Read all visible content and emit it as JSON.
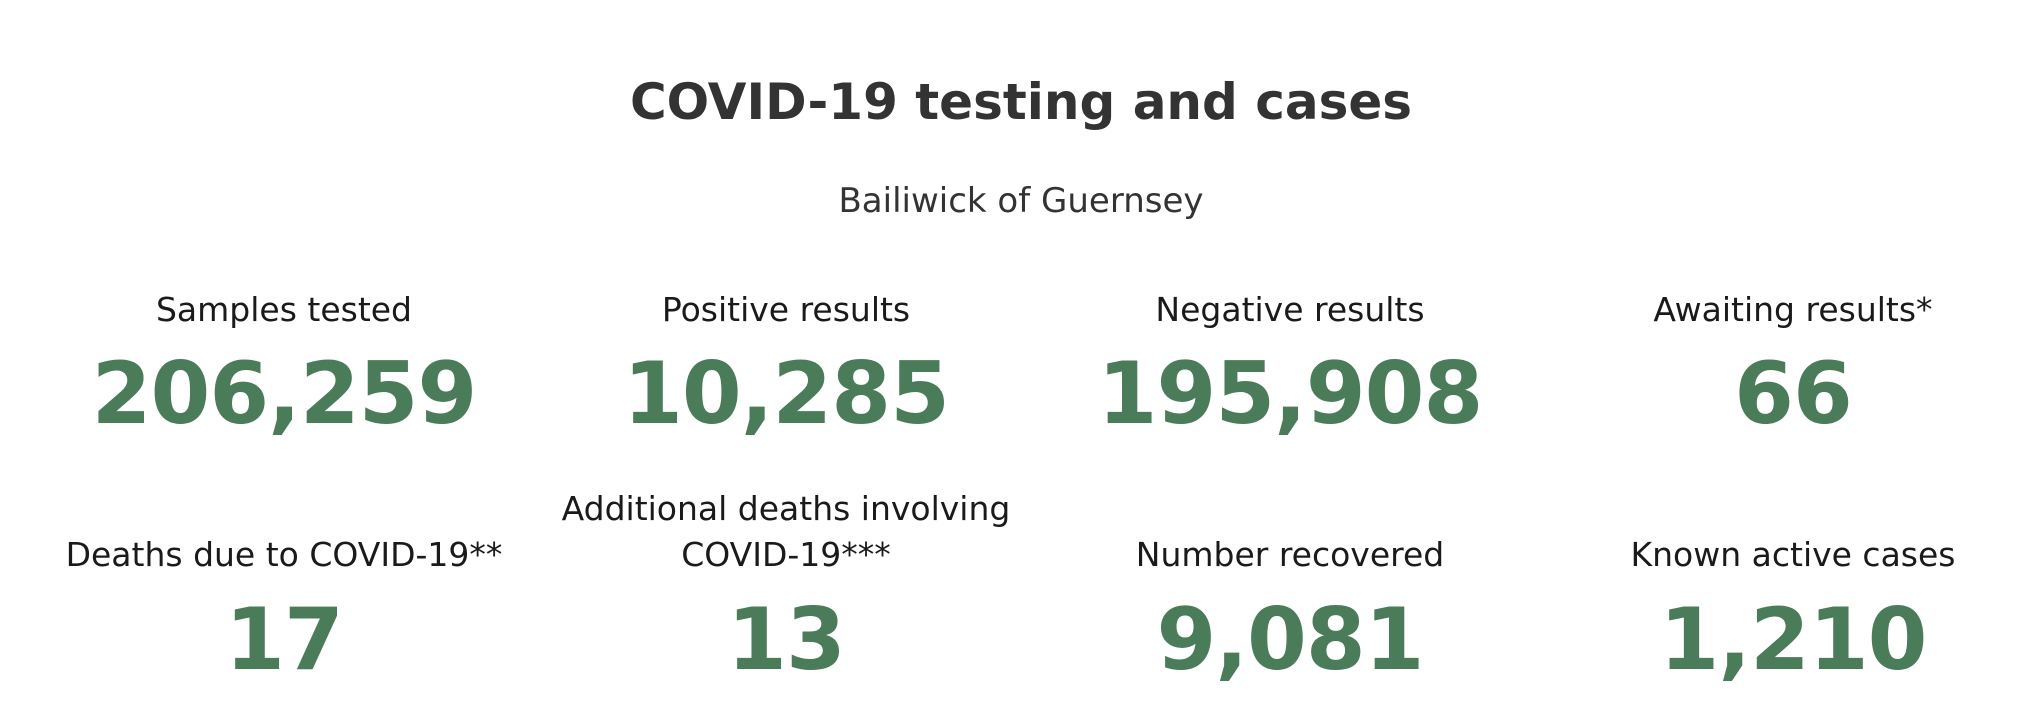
{
  "title": "COVID-19 testing and cases",
  "subtitle": "Bailiwick of Guernsey",
  "stats": [
    {
      "label": "Samples tested",
      "value": "206,259"
    },
    {
      "label": "Positive results",
      "value": "10,285"
    },
    {
      "label": "Negative results",
      "value": "195,908"
    },
    {
      "label": "Awaiting results*",
      "value": "66"
    },
    {
      "label": "Deaths due to COVID-19**",
      "value": "17"
    },
    {
      "label_line1": "Additional deaths involving",
      "label_line2": "COVID-19***",
      "value": "13"
    },
    {
      "label": "Number recovered",
      "value": "9,081"
    },
    {
      "label": "Known active cases",
      "value": "1,210"
    }
  ],
  "colors": {
    "accent": "#4a7c59",
    "title": "#333333",
    "text": "#1a1a1a"
  }
}
